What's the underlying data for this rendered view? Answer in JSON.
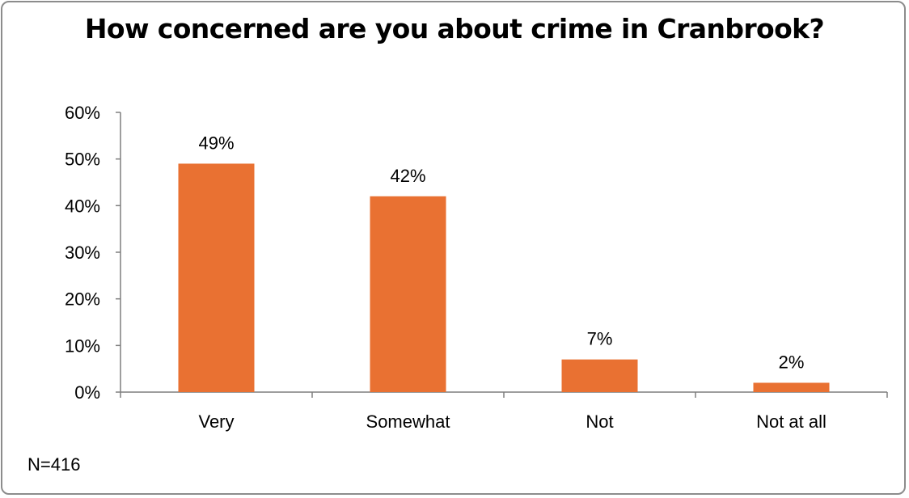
{
  "chart_data": {
    "type": "bar",
    "title": "How concerned are you about crime in Cranbrook?",
    "categories": [
      "Very",
      "Somewhat",
      "Not",
      "Not at all"
    ],
    "values": [
      49,
      42,
      7,
      2
    ],
    "data_labels": [
      "49%",
      "42%",
      "7%",
      "2%"
    ],
    "y_ticks": [
      "0%",
      "10%",
      "20%",
      "30%",
      "40%",
      "50%",
      "60%"
    ],
    "ylim": [
      0,
      60
    ],
    "xlabel": "",
    "ylabel": "",
    "grid": false,
    "legend": "none",
    "bar_color": "#E97132",
    "note": "N=416"
  }
}
